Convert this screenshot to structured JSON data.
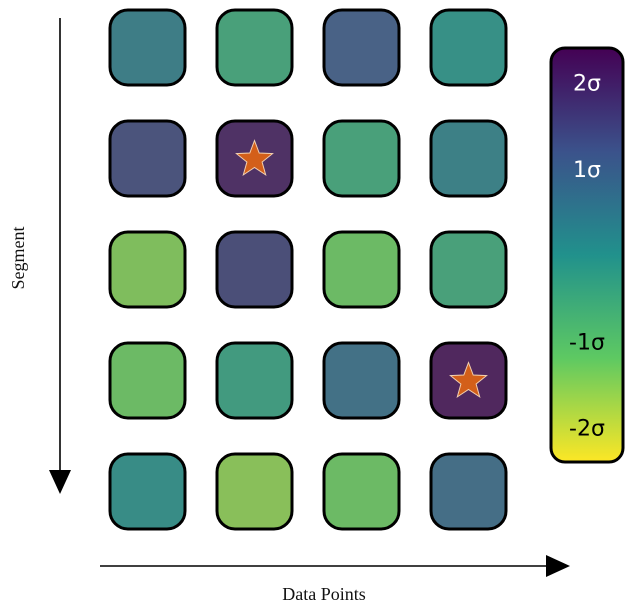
{
  "chart_data": {
    "type": "heatmap",
    "xlabel": "Data Points",
    "ylabel": "Segment",
    "rows": 5,
    "cols": 4,
    "values": [
      [
        0.5,
        -0.5,
        1.2,
        0.0
      ],
      [
        1.5,
        2.2,
        -0.5,
        0.4
      ],
      [
        -1.5,
        1.6,
        -1.3,
        -0.5
      ],
      [
        -1.3,
        -0.3,
        0.8,
        2.6
      ],
      [
        0.1,
        -1.6,
        -1.3,
        0.9
      ]
    ],
    "highlights": [
      {
        "row": 1,
        "col": 1,
        "marker": "star"
      },
      {
        "row": 3,
        "col": 3,
        "marker": "star"
      }
    ],
    "colorbar": {
      "ticks": [
        {
          "value": 2,
          "label": "2σ"
        },
        {
          "value": 1,
          "label": "1σ"
        },
        {
          "value": -1,
          "label": "-1σ"
        },
        {
          "value": -2,
          "label": "-2σ"
        }
      ],
      "range": [
        -2.4,
        2.4
      ],
      "colormap": "viridis"
    },
    "colors": {
      "cell_border": "#000000",
      "marker_fill": "#d35f1a",
      "marker_stroke": "#f2d0b0",
      "axis": "#000000"
    }
  }
}
